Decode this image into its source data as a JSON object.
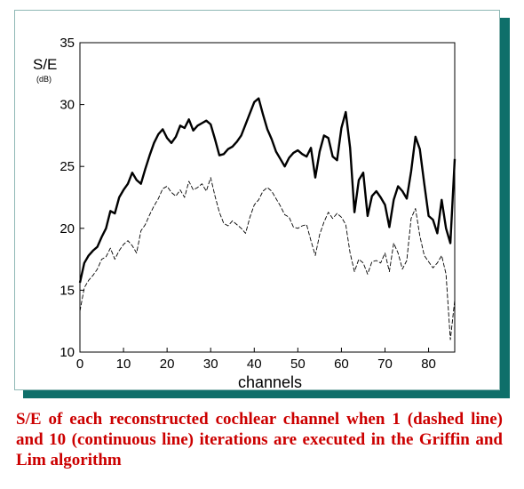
{
  "caption": "S/E of each reconstructed cochlear channel when 1 (dashed line) and 10 (continuous line) iterations are executed in the Griffin and Lim algorithm",
  "colors": {
    "frame_shadow": "#0f6f6a",
    "caption": "#cc0000",
    "lines": "#000000"
  },
  "chart_data": {
    "type": "line",
    "title": "",
    "xlabel": "channels",
    "ylabel": "S/E",
    "ylabel_unit": "(dB)",
    "xlim": [
      0,
      86
    ],
    "ylim": [
      10,
      35
    ],
    "xticks": [
      0,
      10,
      20,
      30,
      40,
      50,
      60,
      70,
      80
    ],
    "yticks": [
      10,
      15,
      20,
      25,
      30,
      35
    ],
    "grid": false,
    "series": [
      {
        "style": "solid",
        "x": [
          0,
          1,
          2,
          3,
          4,
          5,
          6,
          7,
          8,
          9,
          10,
          11,
          12,
          13,
          14,
          15,
          16,
          17,
          18,
          19,
          20,
          21,
          22,
          23,
          24,
          25,
          26,
          27,
          28,
          29,
          30,
          31,
          32,
          33,
          34,
          35,
          36,
          37,
          38,
          39,
          40,
          41,
          42,
          43,
          44,
          45,
          46,
          47,
          48,
          49,
          50,
          51,
          52,
          53,
          54,
          55,
          56,
          57,
          58,
          59,
          60,
          61,
          62,
          63,
          64,
          65,
          66,
          67,
          68,
          69,
          70,
          71,
          72,
          73,
          74,
          75,
          76,
          77,
          78,
          79,
          80,
          81,
          82,
          83,
          84,
          85,
          86
        ],
        "values": [
          15.6,
          17.2,
          17.8,
          18.2,
          18.5,
          19.3,
          20.0,
          21.4,
          21.2,
          22.5,
          23.1,
          23.6,
          24.5,
          23.9,
          23.6,
          24.8,
          25.9,
          26.9,
          27.6,
          28.0,
          27.3,
          26.9,
          27.4,
          28.3,
          28.1,
          28.8,
          27.9,
          28.3,
          28.5,
          28.7,
          28.4,
          27.2,
          25.9,
          26.0,
          26.4,
          26.6,
          27.0,
          27.5,
          28.4,
          29.3,
          30.2,
          30.5,
          29.2,
          28.0,
          27.2,
          26.2,
          25.6,
          25.0,
          25.7,
          26.1,
          26.3,
          26.0,
          25.8,
          26.5,
          24.1,
          26.2,
          27.5,
          27.3,
          25.8,
          25.5,
          28.1,
          29.4,
          26.5,
          21.3,
          23.9,
          24.5,
          21.0,
          22.6,
          23.0,
          22.5,
          21.9,
          20.1,
          22.3,
          23.4,
          23.0,
          22.4,
          24.6,
          27.4,
          26.4,
          23.6,
          21.0,
          20.7,
          19.6,
          22.3,
          20.0,
          18.8,
          25.6
        ]
      },
      {
        "style": "dashed",
        "x": [
          0,
          1,
          2,
          3,
          4,
          5,
          6,
          7,
          8,
          9,
          10,
          11,
          12,
          13,
          14,
          15,
          16,
          17,
          18,
          19,
          20,
          21,
          22,
          23,
          24,
          25,
          26,
          27,
          28,
          29,
          30,
          31,
          32,
          33,
          34,
          35,
          36,
          37,
          38,
          39,
          40,
          41,
          42,
          43,
          44,
          45,
          46,
          47,
          48,
          49,
          50,
          51,
          52,
          53,
          54,
          55,
          56,
          57,
          58,
          59,
          60,
          61,
          62,
          63,
          64,
          65,
          66,
          67,
          68,
          69,
          70,
          71,
          72,
          73,
          74,
          75,
          76,
          77,
          78,
          79,
          80,
          81,
          82,
          83,
          84,
          85,
          86
        ],
        "values": [
          13.3,
          15.2,
          15.8,
          16.2,
          16.7,
          17.5,
          17.7,
          18.4,
          17.5,
          18.2,
          18.7,
          19.0,
          18.6,
          18.0,
          19.8,
          20.3,
          21.1,
          21.8,
          22.4,
          23.2,
          23.4,
          22.9,
          22.6,
          23.1,
          22.5,
          23.8,
          23.1,
          23.3,
          23.6,
          23.0,
          24.1,
          22.6,
          21.3,
          20.4,
          20.2,
          20.6,
          20.3,
          20.0,
          19.6,
          20.9,
          21.9,
          22.3,
          23.0,
          23.3,
          23.0,
          22.4,
          21.8,
          21.1,
          20.9,
          20.1,
          20.0,
          20.2,
          20.3,
          19.0,
          17.8,
          19.5,
          20.5,
          21.3,
          20.8,
          21.2,
          20.9,
          20.3,
          18.0,
          16.5,
          17.5,
          17.2,
          16.3,
          17.3,
          17.4,
          17.2,
          18.0,
          16.5,
          18.8,
          18.0,
          16.7,
          17.4,
          20.8,
          21.6,
          19.4,
          17.8,
          17.3,
          16.8,
          17.2,
          17.8,
          16.3,
          11.0,
          14.2
        ]
      }
    ]
  }
}
